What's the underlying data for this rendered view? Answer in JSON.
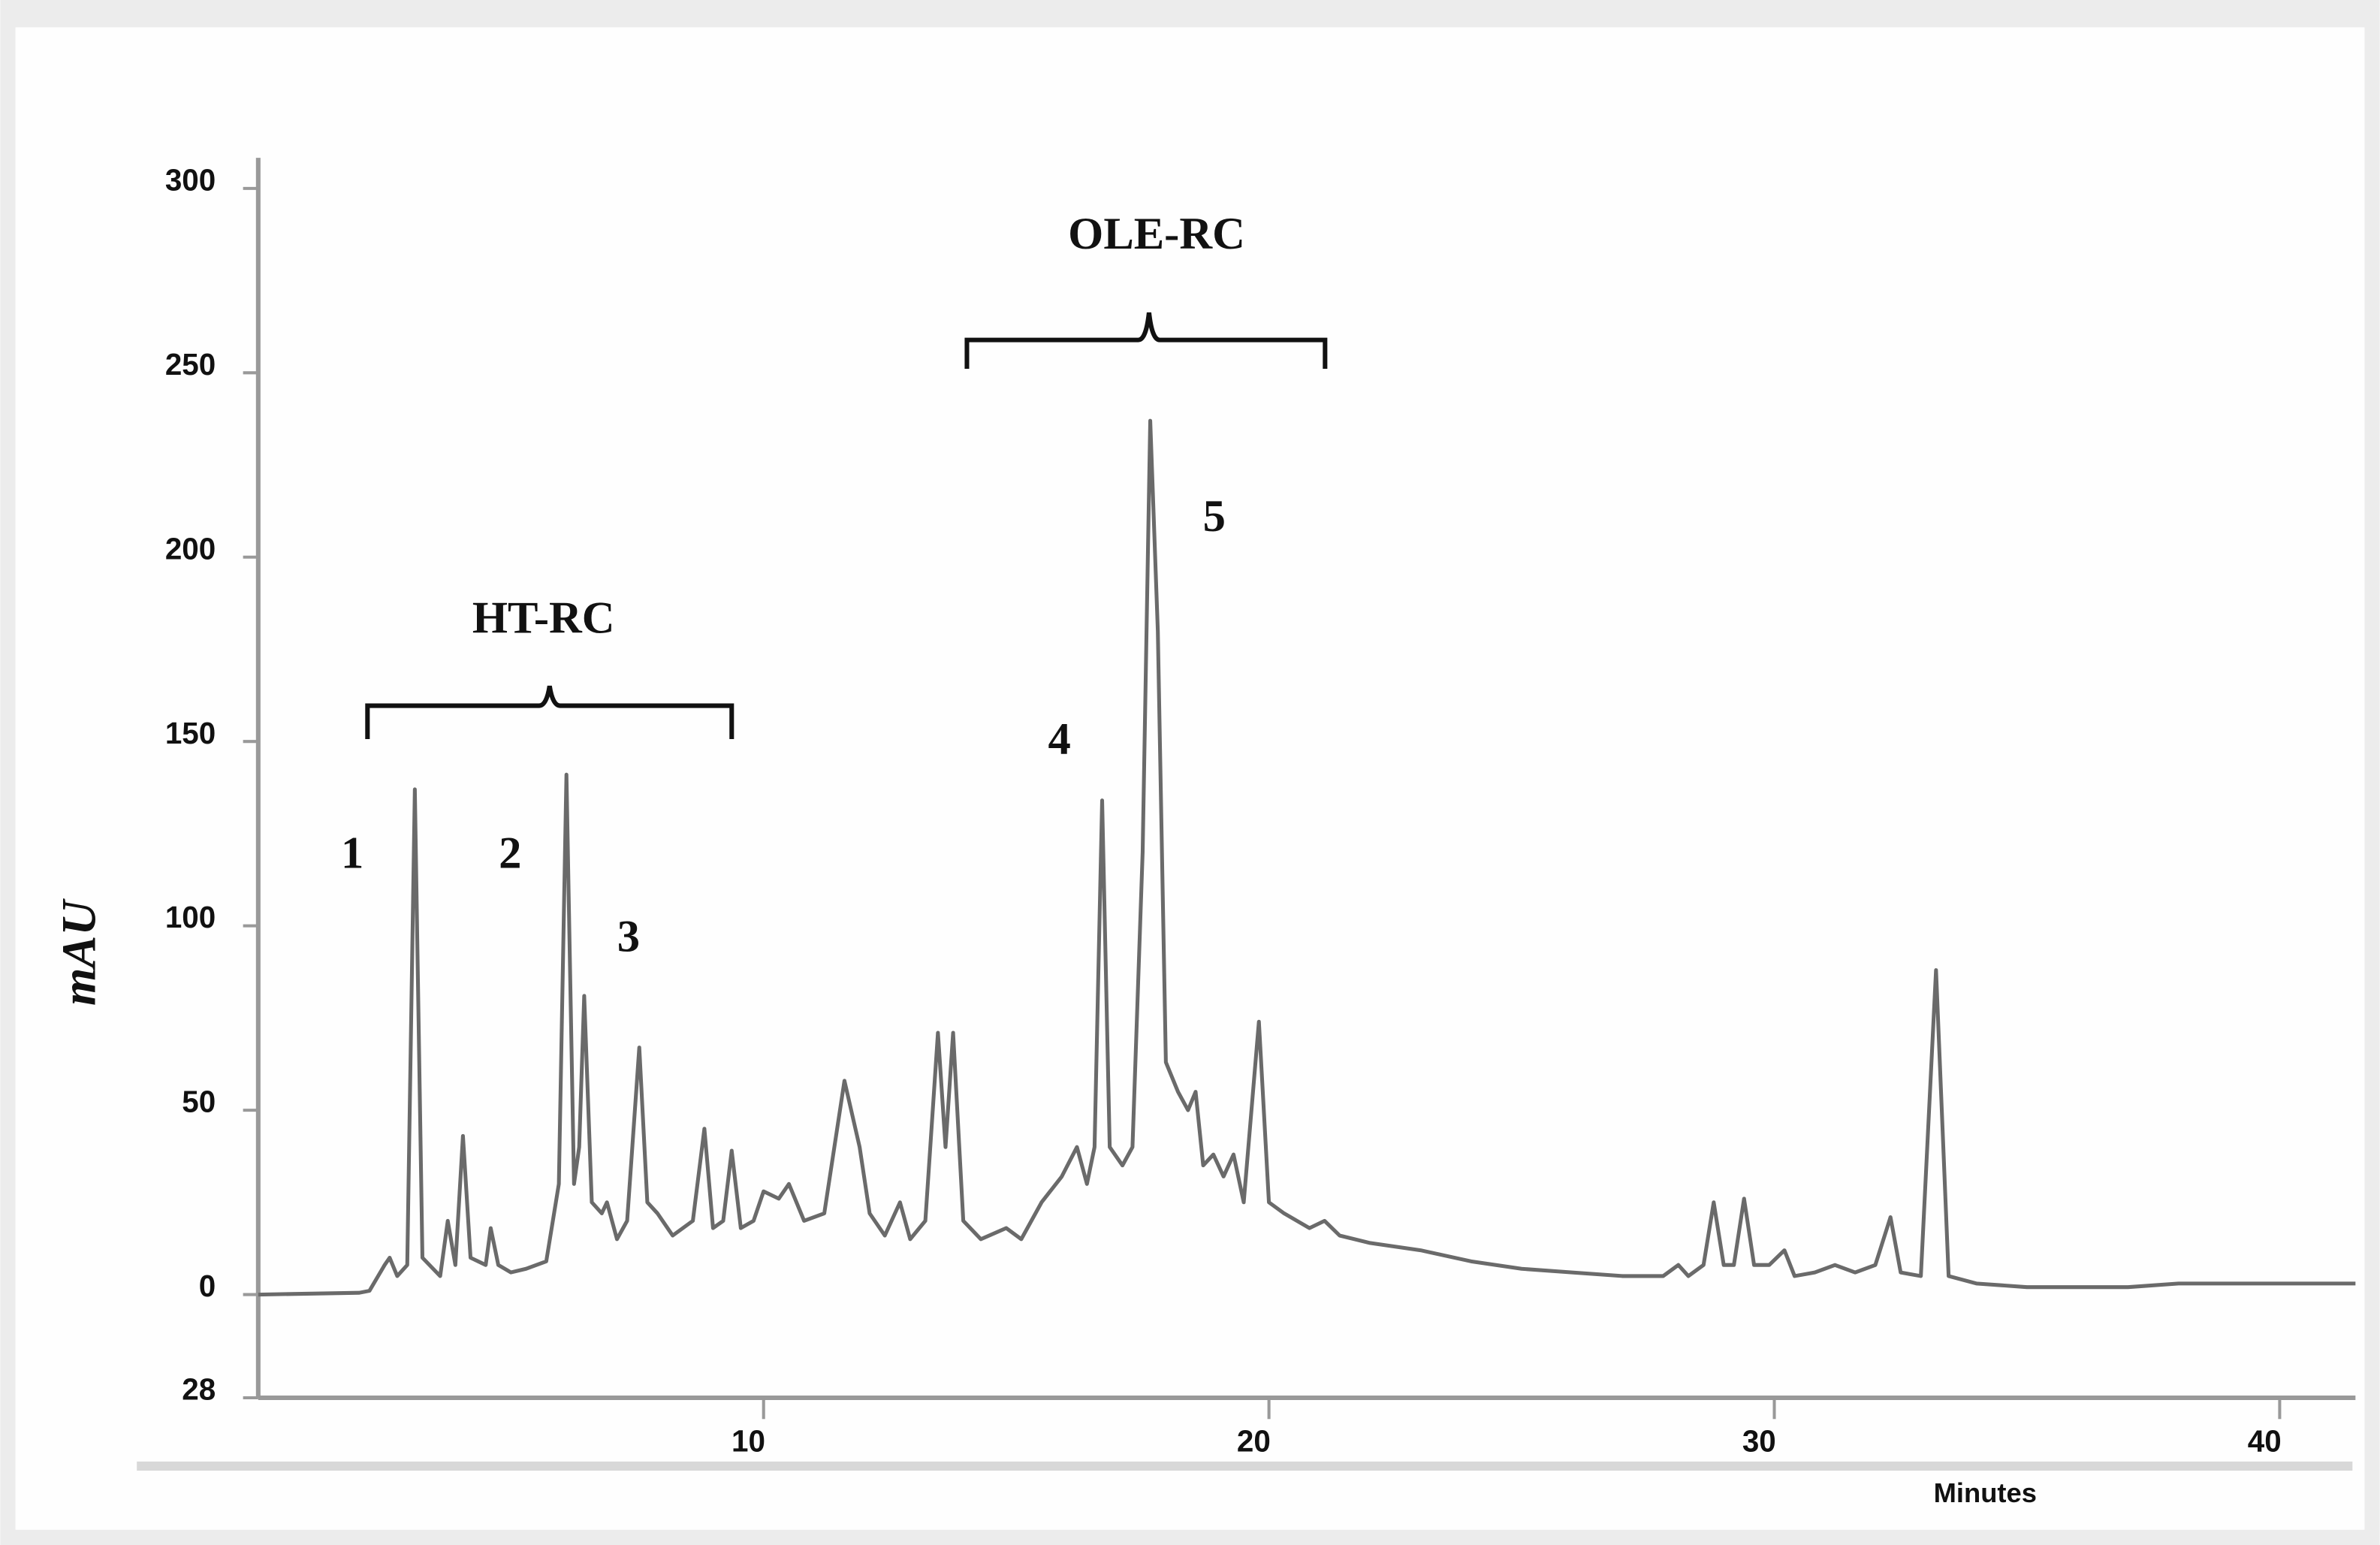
{
  "chart_data": {
    "type": "line",
    "ylabel": "mAU",
    "xlabel": "Minutes",
    "annotations": [
      "HT-RC",
      "OLE-RC",
      "1",
      "2",
      "3",
      "4",
      "5"
    ],
    "x": [
      0,
      2,
      2.2,
      2.5,
      2.6,
      2.75,
      2.95,
      3.1,
      3.25,
      3.6,
      3.75,
      3.9,
      4.05,
      4.2,
      4.5,
      4.6,
      4.75,
      5,
      5.3,
      5.7,
      5.95,
      6.1,
      6.25,
      6.35,
      6.45,
      6.6,
      6.8,
      6.9,
      7.1,
      7.3,
      7.54,
      7.7,
      7.9,
      8.2,
      8.6,
      8.83,
      9.0,
      9.2,
      9.37,
      9.55,
      9.8,
      10,
      10.3,
      10.5,
      10.8,
      11.2,
      11.6,
      11.9,
      12.1,
      12.4,
      12.7,
      12.9,
      13.2,
      13.45,
      13.6,
      13.75,
      13.95,
      14.3,
      14.8,
      15.1,
      15.5,
      15.9,
      16.2,
      16.4,
      16.55,
      16.7,
      16.85,
      17.1,
      17.3,
      17.5,
      17.65,
      17.8,
      17.96,
      18.2,
      18.4,
      18.55,
      18.7,
      18.9,
      19.1,
      19.3,
      19.5,
      19.8,
      20.0,
      20.3,
      20.8,
      21.1,
      21.4,
      22,
      23,
      24,
      25,
      26,
      27,
      27.8,
      28.1,
      28.3,
      28.6,
      28.8,
      29.0,
      29.2,
      29.4,
      29.6,
      29.9,
      30.2,
      30.4,
      30.8,
      31.2,
      31.6,
      32.0,
      32.3,
      32.5,
      32.9,
      33.2,
      33.45,
      34,
      35,
      36,
      37,
      38,
      39,
      40,
      41.5
    ],
    "values": [
      0,
      0.5,
      1,
      8,
      10,
      5,
      8,
      137,
      10,
      5,
      20,
      8,
      43,
      10,
      8,
      18,
      8,
      6,
      7,
      9,
      30,
      141,
      30,
      40,
      81,
      25,
      22,
      25,
      15,
      20,
      67,
      25,
      22,
      16,
      20,
      45,
      18,
      20,
      39,
      18,
      20,
      28,
      26,
      30,
      20,
      22,
      58,
      40,
      22,
      16,
      25,
      15,
      20,
      71,
      40,
      71,
      20,
      15,
      18,
      15,
      25,
      32,
      40,
      30,
      40,
      134,
      40,
      35,
      40,
      120,
      237,
      180,
      63,
      55,
      50,
      55,
      35,
      38,
      32,
      38,
      25,
      74,
      25,
      22,
      18,
      20,
      16,
      14,
      12,
      9,
      7,
      6,
      5,
      5,
      8,
      5,
      8,
      25,
      8,
      8,
      26,
      8,
      8,
      12,
      5,
      6,
      8,
      6,
      8,
      21,
      6,
      5,
      88,
      5,
      3,
      2,
      2,
      2,
      3,
      3,
      3,
      3
    ],
    "color": "#6a6a6a",
    "xlim": [
      0,
      41.5
    ],
    "xticks": [
      10,
      20,
      30,
      40
    ],
    "ylim": [
      -28,
      305
    ],
    "yticks": [
      300,
      250,
      200,
      150,
      100,
      50,
      0,
      {
        "value": -28,
        "label": "28"
      }
    ]
  }
}
